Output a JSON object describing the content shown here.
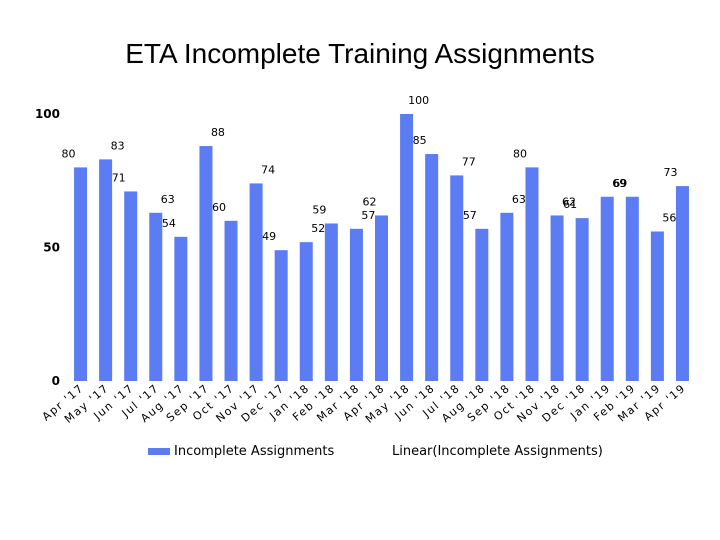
{
  "colors": {
    "bar": "#5b7cf2",
    "text": "#000000"
  },
  "chart_data": {
    "type": "bar",
    "title": "ETA Incomplete Training Assignments",
    "xlabel": "",
    "ylabel": "",
    "ylim": [
      0,
      100
    ],
    "yticks": [
      0,
      50,
      100
    ],
    "grid": false,
    "legend_position": "bottom",
    "categories": [
      "Apr '17",
      "May '17",
      "Jun '17",
      "Jul '17",
      "Aug '17",
      "Sep '17",
      "Oct '17",
      "Nov '17",
      "Dec '17",
      "Jan '18",
      "Feb '18",
      "Mar '18",
      "Apr '18",
      "May '18",
      "Jun '18",
      "Jul '18",
      "Aug '18",
      "Sep '18",
      "Oct '18",
      "Nov '18",
      "Dec '18",
      "Jan '19",
      "Feb '19",
      "Mar '19",
      "Apr '19"
    ],
    "series": [
      {
        "name": "Incomplete Assignments",
        "values": [
          80,
          83,
          71,
          63,
          54,
          88,
          60,
          74,
          49,
          52,
          59,
          57,
          62,
          100,
          85,
          77,
          57,
          63,
          80,
          62,
          61,
          69,
          69,
          56,
          73
        ]
      }
    ],
    "legend": [
      "Incomplete Assignments",
      "Linear(Incomplete Assignments)"
    ]
  }
}
